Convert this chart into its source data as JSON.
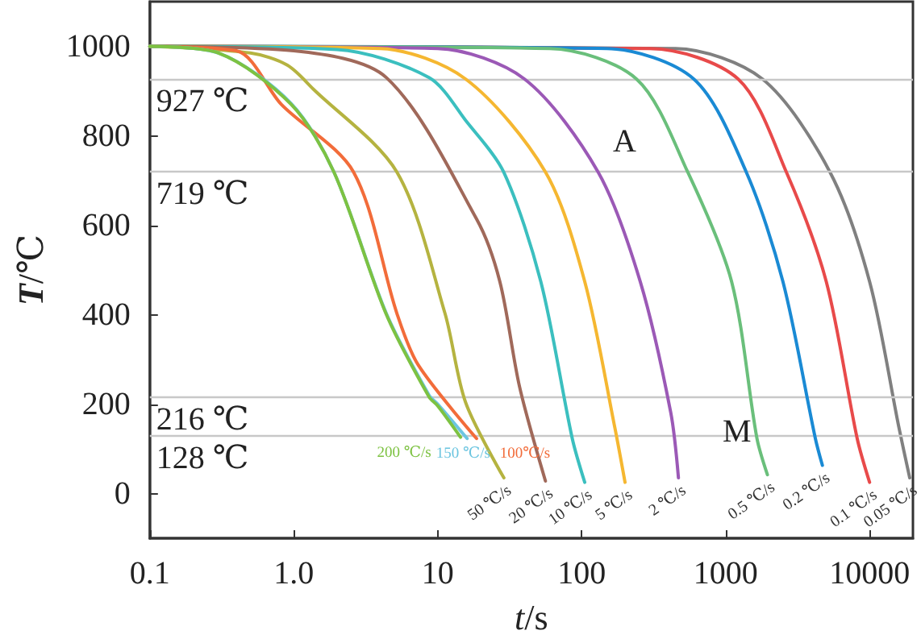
{
  "chart_data": {
    "type": "line",
    "xlabel": "t/s",
    "ylabel": "T/℃",
    "log": "x",
    "xlim": [
      0.1,
      20000
    ],
    "xticks": [
      0.1,
      {
        "value": 1,
        "label": "1.0"
      },
      10,
      100,
      1000,
      10000
    ],
    "ylim": [
      -100,
      1100
    ],
    "yticks": [
      0,
      200,
      400,
      600,
      800,
      1000
    ],
    "grid": false,
    "legend": false,
    "marker": "none",
    "line_style": "solid",
    "ref_lines": [
      {
        "axis": "y",
        "value": 927,
        "label": "927 ℃",
        "color": "#c8c8c8"
      },
      {
        "axis": "y",
        "value": 719,
        "label": "719 ℃",
        "color": "#c8c8c8"
      },
      {
        "axis": "y",
        "value": 216,
        "label": "216 ℃",
        "color": "#c8c8c8"
      },
      {
        "axis": "y",
        "value": 128,
        "label": "128 ℃",
        "color": "#c8c8c8"
      }
    ],
    "annotations": [
      "A",
      "M"
    ],
    "series": [
      {
        "name": "200 ℃/s",
        "color": "#7dc242",
        "x": [
          0.1,
          0.3,
          0.96,
          1.9,
          4.4,
          8.7,
          10,
          14.4
        ],
        "values": [
          1000,
          985,
          870,
          719,
          400,
          216,
          196,
          126
        ]
      },
      {
        "name": "150 ℃/s",
        "color": "#6cc5e0",
        "x": [
          0.1,
          0.3,
          0.96,
          1.9,
          4.4,
          8.7,
          10,
          16
        ],
        "values": [
          1000,
          985,
          872,
          719,
          402,
          220,
          200,
          123
        ]
      },
      {
        "name": "100℃/s",
        "color": "#f26c3a",
        "x": [
          0.1,
          0.4,
          0.82,
          2.6,
          5.2,
          7.3,
          18.6
        ],
        "values": [
          1000,
          990,
          870,
          719,
          403,
          288,
          123
        ]
      },
      {
        "name": "50 ℃/s",
        "color": "#b5b340",
        "x": [
          0.1,
          0.5,
          0.9,
          1.36,
          5.2,
          11.2,
          15.6,
          28.8
        ],
        "values": [
          1000,
          985,
          958,
          905,
          719,
          404,
          204,
          35
        ]
      },
      {
        "name": "20 ℃/s",
        "color": "#a0695a",
        "x": [
          0.1,
          1,
          4.4,
          18.6,
          27,
          37,
          56
        ],
        "values": [
          1000,
          990,
          930,
          614,
          474,
          239,
          28
        ]
      },
      {
        "name": "10 ℃/s",
        "color": "#3bbfbf",
        "x": [
          0.1,
          2,
          8.7,
          16,
          28.7,
          52,
          86,
          105
        ],
        "values": [
          1000,
          993,
          930,
          830,
          719,
          474,
          123,
          25
        ]
      },
      {
        "name": "5 ℃/s",
        "color": "#f5b731",
        "x": [
          0.1,
          4,
          15.6,
          56,
          105,
          170,
          200
        ],
        "values": [
          1000,
          995,
          927,
          719,
          474,
          147,
          25
        ]
      },
      {
        "name": "2 ℃/s",
        "color": "#9b59b6",
        "x": [
          0.1,
          10,
          40,
          130,
          255,
          415,
          470
        ],
        "values": [
          1000,
          995,
          927,
          719,
          474,
          182,
          35
        ]
      },
      {
        "name": "0.5 ℃/s",
        "color": "#6abf7b",
        "x": [
          0.1,
          60,
          240,
          545,
          1100,
          1650,
          1950
        ],
        "values": [
          1000,
          995,
          927,
          719,
          474,
          123,
          42
        ]
      },
      {
        "name": "0.2 ℃/s",
        "color": "#1a8ad4",
        "x": [
          0.1,
          150,
          600,
          1390,
          2500,
          4200,
          4700
        ],
        "values": [
          1000,
          995,
          927,
          719,
          474,
          123,
          63
        ]
      },
      {
        "name": "0.1 ℃/s",
        "color": "#e84a4a",
        "x": [
          0.1,
          300,
          1220,
          2640,
          5000,
          8200,
          10000
        ],
        "values": [
          1000,
          995,
          927,
          719,
          474,
          123,
          25
        ]
      },
      {
        "name": "0.05 ℃/s",
        "color": "#808080",
        "x": [
          0.1,
          450,
          1800,
          5300,
          10000,
          16000,
          19000
        ],
        "values": [
          1000,
          995,
          927,
          719,
          474,
          147,
          35
        ]
      }
    ]
  }
}
